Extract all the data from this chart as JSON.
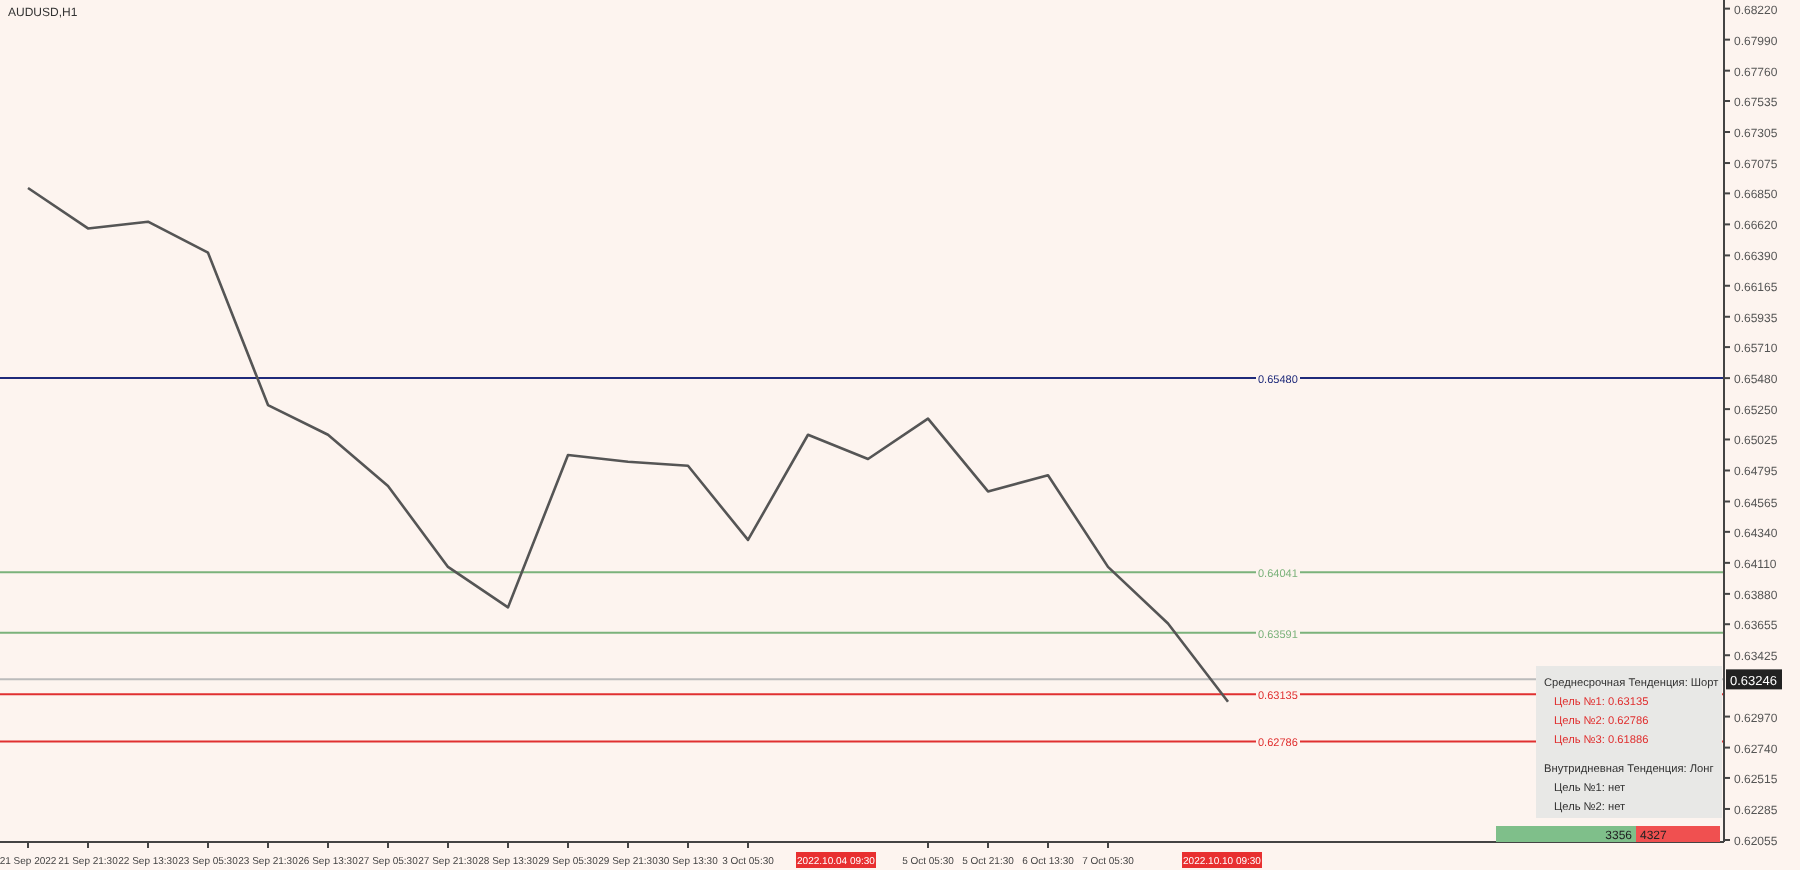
{
  "chart_data": {
    "type": "line",
    "title": "AUDUSD,H1",
    "categories": [
      "21 Sep 2022",
      "21 Sep 21:30",
      "22 Sep 13:30",
      "23 Sep 05:30",
      "23 Sep 21:30",
      "26 Sep 13:30",
      "27 Sep 05:30",
      "27 Sep 21:30",
      "28 Sep 13:30",
      "29 Sep 05:30",
      "29 Sep 21:30",
      "30 Sep 13:30",
      "3 Oct 05:30",
      null,
      null,
      "5 Oct 05:30",
      "5 Oct 21:30",
      "6 Oct 13:30",
      "7 Oct 05:30",
      null,
      null,
      null,
      null,
      null,
      null,
      null,
      null,
      null,
      null
    ],
    "series": [
      {
        "color": "#555555",
        "values": [
          0.6689,
          0.6659,
          0.6664,
          0.6641,
          0.6528,
          0.6506,
          0.6468,
          0.6408,
          0.6378,
          0.6491,
          0.6486,
          0.6483,
          0.6428,
          0.6506,
          0.6488,
          0.6518,
          0.6464,
          0.6476,
          0.6408,
          0.6366,
          0.6308,
          null,
          null,
          null,
          null,
          null,
          null,
          null,
          null
        ]
      }
    ],
    "ylim": [
      0.6204,
      0.68284
    ],
    "yticks": [
      {
        "value": 0.6822,
        "label": "0.68220"
      },
      {
        "value": 0.6799,
        "label": "0.67990"
      },
      {
        "value": 0.6776,
        "label": "0.67760"
      },
      {
        "value": 0.67535,
        "label": "0.67535"
      },
      {
        "value": 0.67305,
        "label": "0.67305"
      },
      {
        "value": 0.67075,
        "label": "0.67075"
      },
      {
        "value": 0.6685,
        "label": "0.66850"
      },
      {
        "value": 0.6662,
        "label": "0.66620"
      },
      {
        "value": 0.6639,
        "label": "0.66390"
      },
      {
        "value": 0.66165,
        "label": "0.66165"
      },
      {
        "value": 0.65935,
        "label": "0.65935"
      },
      {
        "value": 0.6571,
        "label": "0.65710"
      },
      {
        "value": 0.6548,
        "label": "0.65480"
      },
      {
        "value": 0.6525,
        "label": "0.65250"
      },
      {
        "value": 0.65025,
        "label": "0.65025"
      },
      {
        "value": 0.64795,
        "label": "0.64795"
      },
      {
        "value": 0.64565,
        "label": "0.64565"
      },
      {
        "value": 0.6434,
        "label": "0.64340"
      },
      {
        "value": 0.6411,
        "label": "0.64110"
      },
      {
        "value": 0.6388,
        "label": "0.63880"
      },
      {
        "value": 0.63655,
        "label": "0.63655"
      },
      {
        "value": 0.63425,
        "label": "0.63425"
      },
      {
        "value": 0.6297,
        "label": "0.62970"
      },
      {
        "value": 0.6274,
        "label": "0.62740"
      },
      {
        "value": 0.62515,
        "label": "0.62515"
      },
      {
        "value": 0.62285,
        "label": "0.62285"
      },
      {
        "value": 0.62055,
        "label": "0.62055"
      }
    ],
    "ref_lines": [
      {
        "axis": "y",
        "value": 0.6548,
        "label": "0.65480",
        "color": "#1f2a7a"
      },
      {
        "axis": "y",
        "value": 0.64041,
        "label": "0.64041",
        "color": "#7bb27b"
      },
      {
        "axis": "y",
        "value": 0.63591,
        "label": "0.63591",
        "color": "#7bb27b"
      },
      {
        "axis": "y",
        "value": 0.63135,
        "label": "0.63135",
        "color": "#e03030"
      },
      {
        "axis": "y",
        "value": 0.62786,
        "label": "0.62786",
        "color": "#e03030"
      },
      {
        "axis": "y",
        "value": 0.63246,
        "label": "0.63246",
        "color": "#bbbbbb"
      }
    ],
    "annotations": [
      "Среднесрочная Тенденция: Шорт",
      "Цель №1: 0.63135",
      "Цель №2: 0.62786",
      "Цель №3: 0.61886",
      "Внутридневная Тенденция: Лонг",
      "Цель №1: нет",
      "Цель №2: нет",
      "3356",
      "4327",
      "2022.10.04 09:30",
      "2022.10.10 09:30"
    ]
  }
}
